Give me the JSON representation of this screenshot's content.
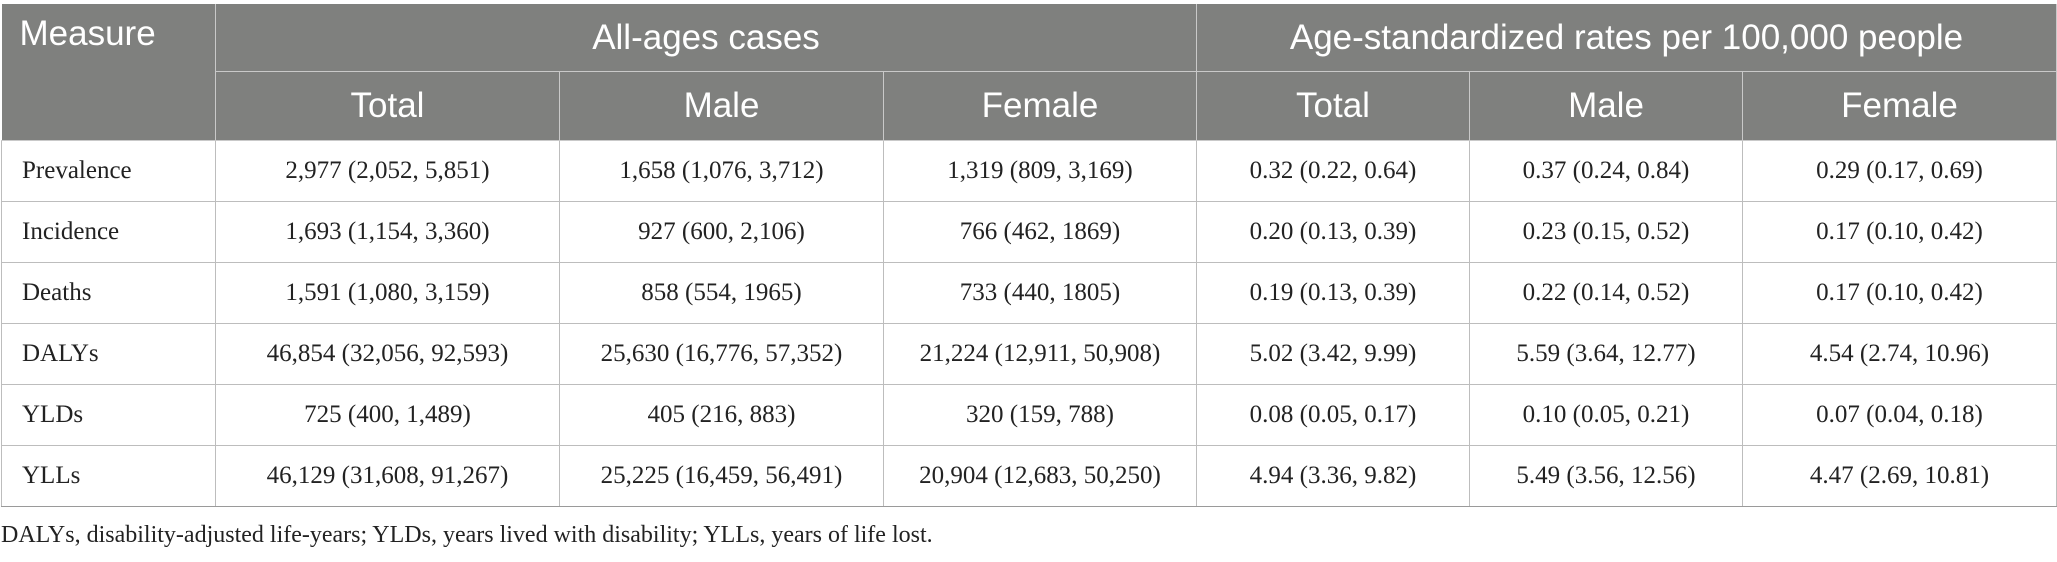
{
  "table": {
    "header": {
      "measure": "Measure",
      "group_all_ages": "All-ages cases",
      "group_age_std": "Age-standardized rates per 100,000 people",
      "sub": [
        "Total",
        "Male",
        "Female",
        "Total",
        "Male",
        "Female"
      ]
    },
    "rows": [
      {
        "label": "Prevalence",
        "cells": [
          "2,977 (2,052, 5,851)",
          "1,658 (1,076, 3,712)",
          "1,319 (809, 3,169)",
          "0.32 (0.22, 0.64)",
          "0.37 (0.24, 0.84)",
          "0.29 (0.17, 0.69)"
        ]
      },
      {
        "label": "Incidence",
        "cells": [
          "1,693 (1,154, 3,360)",
          "927 (600, 2,106)",
          "766 (462, 1869)",
          "0.20 (0.13, 0.39)",
          "0.23 (0.15, 0.52)",
          "0.17 (0.10, 0.42)"
        ]
      },
      {
        "label": "Deaths",
        "cells": [
          "1,591 (1,080, 3,159)",
          "858 (554, 1965)",
          "733 (440, 1805)",
          "0.19 (0.13, 0.39)",
          "0.22 (0.14, 0.52)",
          "0.17 (0.10, 0.42)"
        ]
      },
      {
        "label": "DALYs",
        "cells": [
          "46,854 (32,056, 92,593)",
          "25,630 (16,776, 57,352)",
          "21,224 (12,911, 50,908)",
          "5.02 (3.42, 9.99)",
          "5.59 (3.64, 12.77)",
          "4.54 (2.74, 10.96)"
        ]
      },
      {
        "label": "YLDs",
        "cells": [
          "725 (400, 1,489)",
          "405 (216, 883)",
          "320 (159, 788)",
          "0.08 (0.05, 0.17)",
          "0.10 (0.05, 0.21)",
          "0.07 (0.04, 0.18)"
        ]
      },
      {
        "label": "YLLs",
        "cells": [
          "46,129 (31,608, 91,267)",
          "25,225 (16,459, 56,491)",
          "20,904 (12,683, 50,250)",
          "4.94 (3.36, 9.82)",
          "5.49 (3.56, 12.56)",
          "4.47 (2.69, 10.81)"
        ]
      }
    ]
  },
  "footnote": "DALYs, disability-adjusted life-years; YLDs, years lived with disability; YLLs, years of life lost.",
  "colors": {
    "header_bg": "#7f807e",
    "header_text": "#ffffff",
    "body_text": "#222222",
    "grid": "#bdbdbd"
  }
}
